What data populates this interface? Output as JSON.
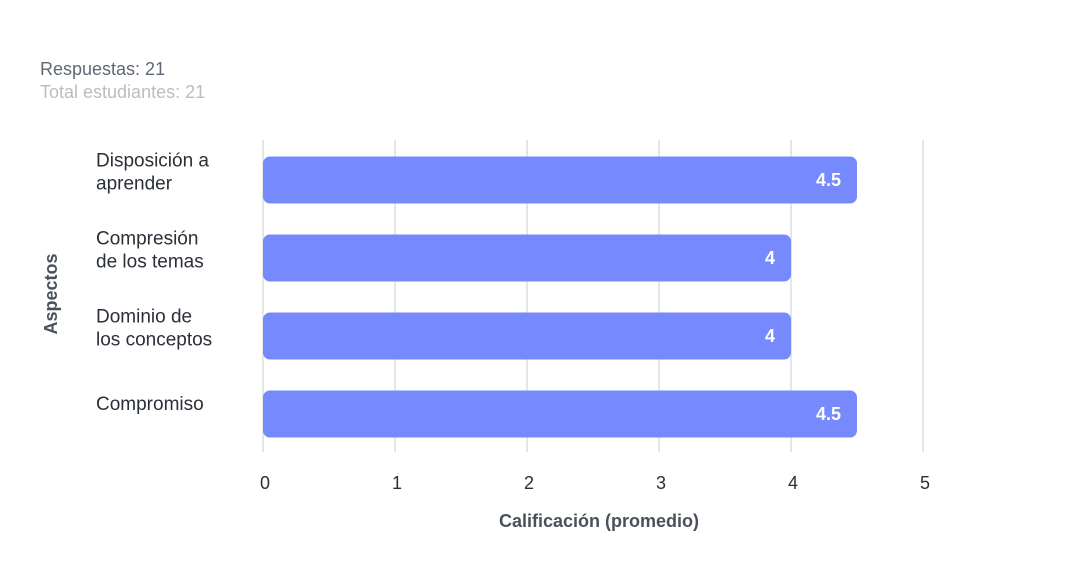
{
  "summary": {
    "responses": "Respuestas: 21",
    "total_students": "Total estudiantes: 21"
  },
  "colors": {
    "bar": "#7689fd",
    "grid": "#c9ced6"
  },
  "chart_data": {
    "type": "bar",
    "orientation": "horizontal",
    "categories": [
      [
        "Disposición a",
        "aprender"
      ],
      [
        "Compresión",
        "de los temas"
      ],
      [
        "Dominio de",
        "los conceptos"
      ],
      [
        "Compromiso"
      ]
    ],
    "values": [
      4.5,
      4,
      4,
      4.5
    ],
    "value_labels": [
      "4.5",
      "4",
      "4",
      "4.5"
    ],
    "xlabel": "Calificación (promedio)",
    "ylabel": "Aspectos",
    "xlim": [
      0,
      5
    ],
    "xticks": [
      "0",
      "1",
      "2",
      "3",
      "4",
      "5"
    ],
    "grid": true
  }
}
